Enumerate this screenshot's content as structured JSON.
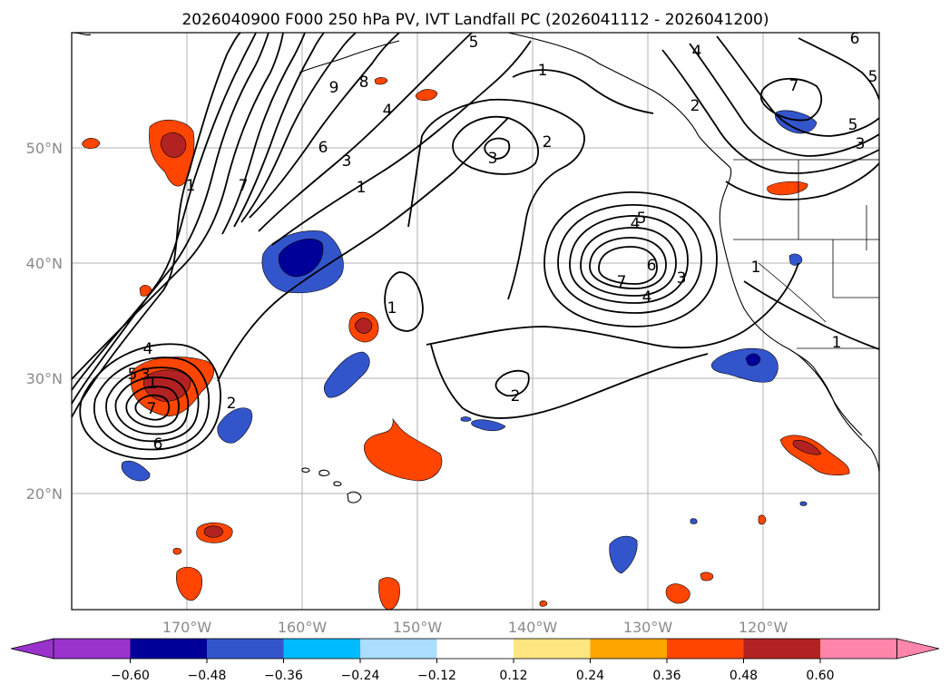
{
  "title": "2026040900 F000 250 hPa PV, IVT Landfall PC (2026041112 - 2026041200)",
  "map": {
    "lon_labels": [
      "170°W",
      "160°W",
      "150°W",
      "140°W",
      "130°W",
      "120°W"
    ],
    "lat_labels": [
      "50°N",
      "40°N",
      "30°N",
      "20°N"
    ],
    "land_color": "#ffffff",
    "ocean_color": "#ffffff",
    "grid": true
  },
  "colorbar": {
    "tick_labels": [
      "−0.60",
      "−0.48",
      "−0.36",
      "−0.24",
      "−0.12",
      "0.12",
      "0.24",
      "0.36",
      "0.48",
      "0.60"
    ],
    "colors": [
      "#9933cc",
      "#000099",
      "#3355cc",
      "#00bbff",
      "#aaddff",
      "#ffffff",
      "#ffe680",
      "#ffa500",
      "#ff4500",
      "#b22222",
      "#ff85aa"
    ],
    "extend": "both"
  },
  "contour_labels": [
    "1",
    "1",
    "1",
    "1",
    "1",
    "1",
    "1",
    "2",
    "2",
    "2",
    "2",
    "3",
    "3",
    "3",
    "3",
    "3",
    "4",
    "4",
    "4",
    "4",
    "4",
    "5",
    "5",
    "5",
    "5",
    "5",
    "6",
    "6",
    "6",
    "6",
    "7",
    "7",
    "7",
    "7",
    "8",
    "9"
  ]
}
